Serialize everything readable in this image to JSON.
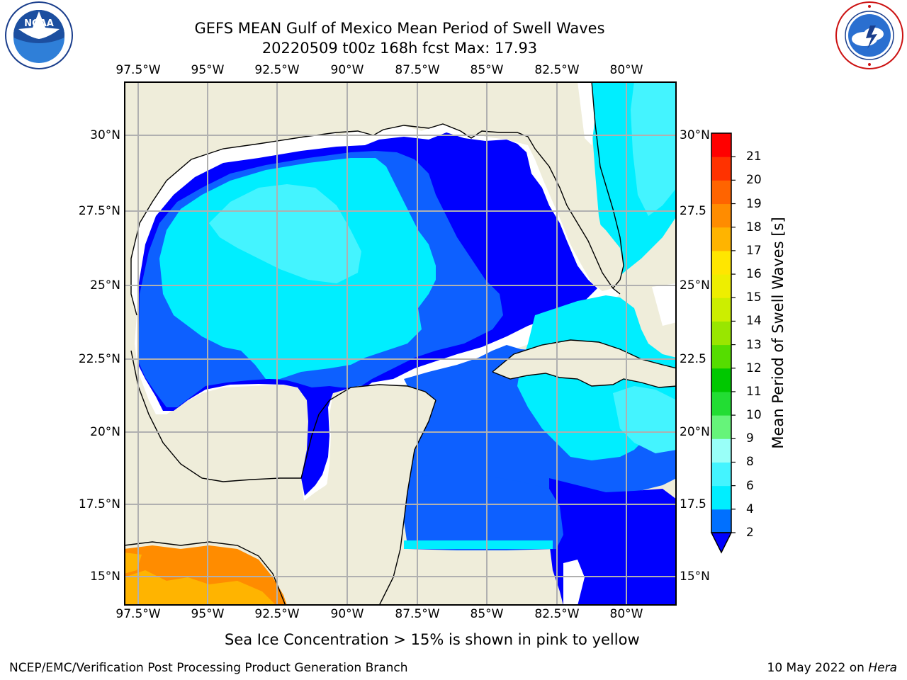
{
  "header": {
    "title_line1": "GEFS MEAN Gulf of Mexico Mean Period of Swell Waves",
    "title_line2": "20220509 t00z 168h fcst   Max: 17.93"
  },
  "logos": {
    "left": {
      "name": "NOAA",
      "ring_text": "NATIONAL OCEANIC AND ATMOSPHERIC ADMINISTRATION · U.S. DEPARTMENT OF COMMERCE"
    },
    "right": {
      "name": "NATIONAL WEATHER SERVICE"
    }
  },
  "map": {
    "lon_labels": [
      "97.5°W",
      "95°W",
      "92.5°W",
      "90°W",
      "87.5°W",
      "85°W",
      "82.5°W",
      "80°W"
    ],
    "lat_labels": [
      "30°N",
      "27.5°N",
      "25°N",
      "22.5°N",
      "20°N",
      "17.5°N",
      "15°N"
    ],
    "lat_labels_right": [
      "30°N",
      "27.5",
      "25°N",
      "22.5",
      "20°N",
      "17.5",
      "15°N"
    ],
    "colors": {
      "land": "#efedda",
      "gridline": "#b0b0b0",
      "period_2_4": "#0000ff",
      "period_4_6": "#0d60ff",
      "period_6_8": "#00eeff",
      "period_8_9": "#44f4ff",
      "period_16_17": "#ffb400",
      "period_17_18": "#ff8c00"
    }
  },
  "colorbar": {
    "title": "Mean Period of Swell Waves [s]",
    "ticks": [
      "2",
      "4",
      "6",
      "8",
      "9",
      "10",
      "11",
      "12",
      "13",
      "14",
      "15",
      "16",
      "17",
      "18",
      "19",
      "20",
      "21"
    ],
    "colors": [
      "#0070ff",
      "#00eeff",
      "#44f4ff",
      "#99fff8",
      "#66f47a",
      "#22dd33",
      "#00c800",
      "#55dd00",
      "#99e600",
      "#ccee00",
      "#eeee00",
      "#ffe600",
      "#ffb400",
      "#ff8c00",
      "#ff6400",
      "#ff3200",
      "#ff0000"
    ],
    "under_color": "#0000ff"
  },
  "notes": {
    "sea_ice": "Sea Ice Concentration > 15% is shown in pink to yellow"
  },
  "footer": {
    "left": "NCEP/EMC/Verification Post Processing Product Generation Branch",
    "right_prefix": "10 May 2022 on",
    "right_host": "Hera"
  }
}
